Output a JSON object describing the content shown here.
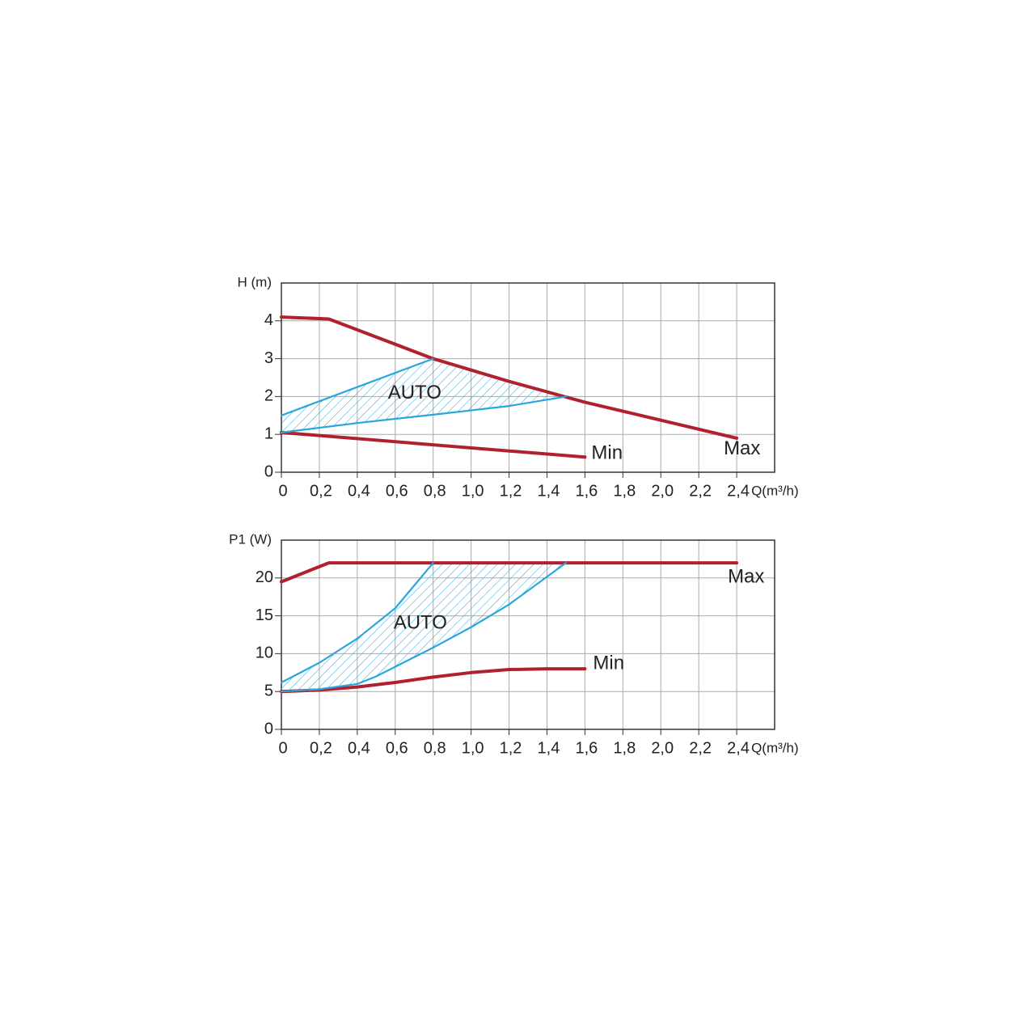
{
  "chart_data": [
    {
      "type": "line",
      "y_label": "H (m)",
      "x_label": "Q(m³/h)",
      "xlim": [
        0,
        2.6
      ],
      "ylim": [
        0,
        5
      ],
      "xticks": [
        0,
        {
          "value": 0.2,
          "label": "0,2"
        },
        {
          "value": 0.4,
          "label": "0,4"
        },
        {
          "value": 0.6,
          "label": "0,6"
        },
        {
          "value": 0.8,
          "label": "0,8"
        },
        {
          "value": 1.0,
          "label": "1,0"
        },
        {
          "value": 1.2,
          "label": "1,2"
        },
        {
          "value": 1.4,
          "label": "1,4"
        },
        {
          "value": 1.6,
          "label": "1,6"
        },
        {
          "value": 1.8,
          "label": "1,8"
        },
        {
          "value": 2.0,
          "label": "2,0"
        },
        {
          "value": 2.2,
          "label": "2,2"
        },
        {
          "value": 2.4,
          "label": "2,4"
        }
      ],
      "yticks": [
        0,
        1,
        2,
        3,
        4
      ],
      "grid": true,
      "series": [
        {
          "name": "Max",
          "color": "#b0202e",
          "x": [
            0,
            0.25,
            0.8,
            1.2,
            1.6,
            2.4
          ],
          "values": [
            4.1,
            4.05,
            3.0,
            2.4,
            1.85,
            0.9
          ]
        },
        {
          "name": "Min",
          "color": "#b0202e",
          "x": [
            0,
            1.6
          ],
          "values": [
            1.05,
            0.4
          ]
        },
        {
          "name": "AUTO",
          "color": "#2aa6de",
          "x": [
            0,
            0.8
          ],
          "values": [
            1.5,
            3.0
          ]
        },
        {
          "color": "#2aa6de",
          "x": [
            0,
            0.4,
            0.8,
            1.2,
            1.5
          ],
          "values": [
            1.05,
            1.3,
            1.52,
            1.75,
            2.0
          ]
        }
      ]
    },
    {
      "type": "line",
      "y_label": "P1 (W)",
      "x_label": "Q(m³/h)",
      "xlim": [
        0,
        2.6
      ],
      "ylim": [
        0,
        25
      ],
      "xticks": [
        0,
        {
          "value": 0.2,
          "label": "0,2"
        },
        {
          "value": 0.4,
          "label": "0,4"
        },
        {
          "value": 0.6,
          "label": "0,6"
        },
        {
          "value": 0.8,
          "label": "0,8"
        },
        {
          "value": 1.0,
          "label": "1,0"
        },
        {
          "value": 1.2,
          "label": "1,2"
        },
        {
          "value": 1.4,
          "label": "1,4"
        },
        {
          "value": 1.6,
          "label": "1,6"
        },
        {
          "value": 1.8,
          "label": "1,8"
        },
        {
          "value": 2.0,
          "label": "2,0"
        },
        {
          "value": 2.2,
          "label": "2,2"
        },
        {
          "value": 2.4,
          "label": "2,4"
        }
      ],
      "yticks": [
        0,
        5,
        10,
        15,
        20
      ],
      "grid": true,
      "series": [
        {
          "name": "Max",
          "color": "#b0202e",
          "x": [
            0,
            0.25,
            2.4
          ],
          "values": [
            19.5,
            22,
            22
          ]
        },
        {
          "name": "Min",
          "color": "#b0202e",
          "x": [
            0,
            0.2,
            0.4,
            0.6,
            0.8,
            1.0,
            1.2,
            1.4,
            1.6
          ],
          "values": [
            5,
            5.2,
            5.6,
            6.2,
            6.9,
            7.5,
            7.9,
            8.0,
            8.0
          ]
        },
        {
          "name": "AUTO",
          "color": "#2aa6de",
          "x": [
            0,
            0.2,
            0.4,
            0.6,
            0.8
          ],
          "values": [
            6.2,
            8.8,
            12,
            16,
            22
          ]
        },
        {
          "color": "#2aa6de",
          "x": [
            0,
            0.2,
            0.4,
            0.5,
            0.8,
            1.0,
            1.2,
            1.5
          ],
          "values": [
            5,
            5.3,
            6,
            7,
            10.8,
            13.5,
            16.5,
            22
          ]
        }
      ]
    }
  ]
}
